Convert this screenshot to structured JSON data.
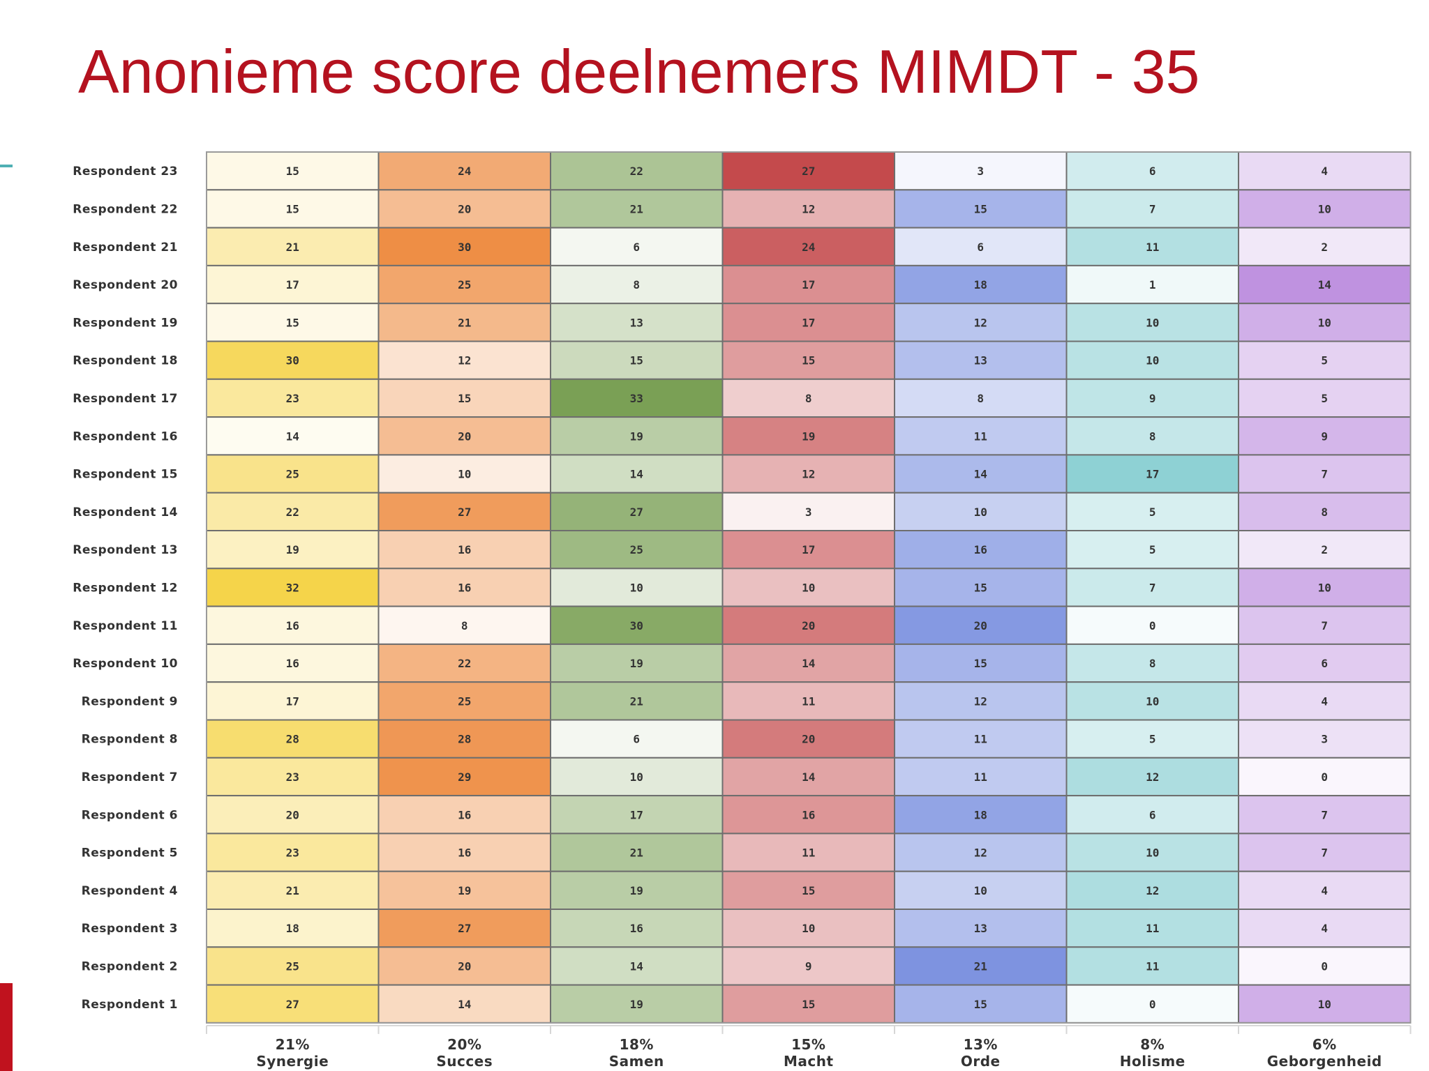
{
  "slide": {
    "title": "Anonieme score deelnemers MIMDT - 35"
  },
  "chart_data": {
    "type": "heatmap",
    "title": "",
    "xlabel": "",
    "ylabel": "",
    "columns": [
      {
        "pct": "21%",
        "name": "Synergie",
        "color": "#f5d44a"
      },
      {
        "pct": "20%",
        "name": "Succes",
        "color": "#ee8e45"
      },
      {
        "pct": "18%",
        "name": "Samen",
        "color": "#7aa055"
      },
      {
        "pct": "15%",
        "name": "Macht",
        "color": "#c44a4c"
      },
      {
        "pct": "13%",
        "name": "Orde",
        "color": "#7e93e0"
      },
      {
        "pct": "8%",
        "name": "Holisme",
        "color": "#8ed1d4"
      },
      {
        "pct": "6%",
        "name": "Geborgenheid",
        "color": "#bf92e0"
      }
    ],
    "rows": [
      {
        "label": "Respondent 23",
        "values": [
          15,
          24,
          22,
          27,
          3,
          6,
          4
        ]
      },
      {
        "label": "Respondent 22",
        "values": [
          15,
          20,
          21,
          12,
          15,
          7,
          10
        ]
      },
      {
        "label": "Respondent 21",
        "values": [
          21,
          30,
          6,
          24,
          6,
          11,
          2
        ]
      },
      {
        "label": "Respondent 20",
        "values": [
          17,
          25,
          8,
          17,
          18,
          1,
          14
        ]
      },
      {
        "label": "Respondent 19",
        "values": [
          15,
          21,
          13,
          17,
          12,
          10,
          10
        ]
      },
      {
        "label": "Respondent 18",
        "values": [
          30,
          12,
          15,
          15,
          13,
          10,
          5
        ]
      },
      {
        "label": "Respondent 17",
        "values": [
          23,
          15,
          33,
          8,
          8,
          9,
          5
        ]
      },
      {
        "label": "Respondent 16",
        "values": [
          14,
          20,
          19,
          19,
          11,
          8,
          9
        ]
      },
      {
        "label": "Respondent 15",
        "values": [
          25,
          10,
          14,
          12,
          14,
          17,
          7
        ]
      },
      {
        "label": "Respondent 14",
        "values": [
          22,
          27,
          27,
          3,
          10,
          5,
          8
        ]
      },
      {
        "label": "Respondent 13",
        "values": [
          19,
          16,
          25,
          17,
          16,
          5,
          2
        ]
      },
      {
        "label": "Respondent 12",
        "values": [
          32,
          16,
          10,
          10,
          15,
          7,
          10
        ]
      },
      {
        "label": "Respondent 11",
        "values": [
          16,
          8,
          30,
          20,
          20,
          0,
          7
        ]
      },
      {
        "label": "Respondent 10",
        "values": [
          16,
          22,
          19,
          14,
          15,
          8,
          6
        ]
      },
      {
        "label": "Respondent 9",
        "values": [
          17,
          25,
          21,
          11,
          12,
          10,
          4
        ]
      },
      {
        "label": "Respondent 8",
        "values": [
          28,
          28,
          6,
          20,
          11,
          5,
          3
        ]
      },
      {
        "label": "Respondent 7",
        "values": [
          23,
          29,
          10,
          14,
          11,
          12,
          0
        ]
      },
      {
        "label": "Respondent 6",
        "values": [
          20,
          16,
          17,
          16,
          18,
          6,
          7
        ]
      },
      {
        "label": "Respondent 5",
        "values": [
          23,
          16,
          21,
          11,
          12,
          10,
          7
        ]
      },
      {
        "label": "Respondent 4",
        "values": [
          21,
          19,
          19,
          15,
          10,
          12,
          4
        ]
      },
      {
        "label": "Respondent 3",
        "values": [
          18,
          27,
          16,
          10,
          13,
          11,
          4
        ]
      },
      {
        "label": "Respondent 2",
        "values": [
          25,
          20,
          14,
          9,
          21,
          11,
          0
        ]
      },
      {
        "label": "Respondent 1",
        "values": [
          27,
          14,
          19,
          15,
          15,
          0,
          10
        ]
      }
    ]
  }
}
